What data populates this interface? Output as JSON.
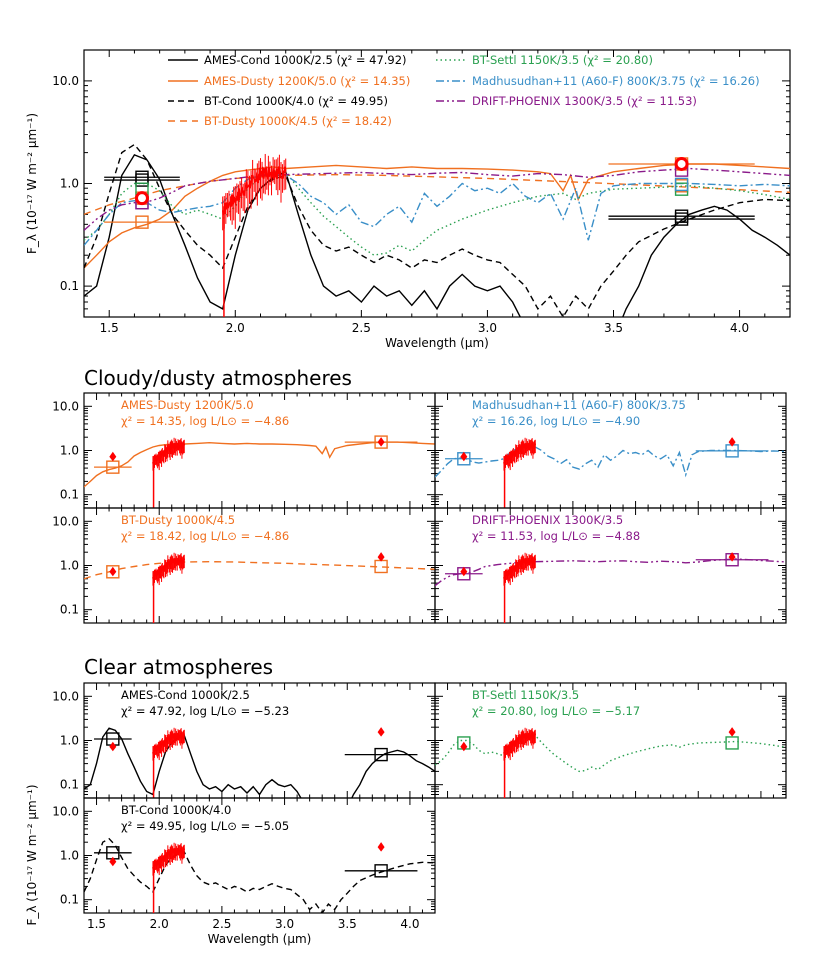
{
  "colors": {
    "ames_cond": "#000000",
    "ames_dusty": "#f07020",
    "bt_cond": "#000000",
    "bt_dusty": "#f07020",
    "bt_settl": "#2aa050",
    "madhusudhan": "#3a8fc8",
    "drift": "#8a1a8a",
    "data": "#ff0000"
  },
  "sections": {
    "cloudy": "Cloudy/dusty atmospheres",
    "clear": "Clear atmospheres"
  },
  "chart_data": {
    "type": "line",
    "xlabel": "Wavelength (μm)",
    "ylabel": "F_λ (10⁻¹⁷ W m⁻² μm⁻¹)",
    "xlim": [
      1.4,
      4.2
    ],
    "ylim": [
      0.05,
      20
    ],
    "y_scale": "log",
    "x_ticks": [
      "1.5",
      "2.0",
      "2.5",
      "3.0",
      "3.5",
      "4.0"
    ],
    "y_ticks": [
      "0.1",
      "1.0",
      "10.0"
    ],
    "legend": [
      {
        "label": "AMES-Cond 1000K/2.5 (χ² = 47.92)",
        "model": "ames_cond"
      },
      {
        "label": "AMES-Dusty 1200K/5.0 (χ² = 14.35)",
        "model": "ames_dusty"
      },
      {
        "label": "BT-Cond 1000K/4.0 (χ² = 49.95)",
        "model": "bt_cond"
      },
      {
        "label": "BT-Dusty 1000K/4.5 (χ² = 18.42)",
        "model": "bt_dusty"
      },
      {
        "label": "BT-Settl 1150K/3.5 (χ² = 20.80)",
        "model": "bt_settl"
      },
      {
        "label": "Madhusudhan+11 (A60-F) 800K/3.75 (χ² = 16.26)",
        "model": "madhusudhan"
      },
      {
        "label": "DRIFT-PHOENIX 1300K/3.5 (χ² = 11.53)",
        "model": "drift"
      }
    ],
    "photometry": [
      {
        "x": 1.63,
        "y": 0.72,
        "xerr": 0.15
      },
      {
        "x": 3.77,
        "y": 1.55,
        "xerr": 0.29
      }
    ],
    "spectrum": {
      "x1": 1.95,
      "x2": 2.2,
      "y_start": 0.55,
      "y_end": 1.3
    },
    "models": {
      "ames_cond": {
        "name": "AMES-Cond 1000K/2.5",
        "dash": "",
        "x": [
          1.4,
          1.45,
          1.5,
          1.55,
          1.6,
          1.65,
          1.7,
          1.75,
          1.8,
          1.85,
          1.9,
          1.95,
          2.0,
          2.05,
          2.1,
          2.15,
          2.2,
          2.25,
          2.3,
          2.35,
          2.4,
          2.45,
          2.5,
          2.55,
          2.6,
          2.65,
          2.7,
          2.75,
          2.8,
          2.85,
          2.9,
          2.95,
          3.0,
          3.05,
          3.1,
          3.15,
          3.2,
          3.25,
          3.3,
          3.35,
          3.4,
          3.45,
          3.5,
          3.55,
          3.6,
          3.65,
          3.7,
          3.75,
          3.8,
          3.85,
          3.9,
          3.95,
          4.0,
          4.05,
          4.1,
          4.15,
          4.2
        ],
        "y": [
          0.08,
          0.1,
          0.3,
          1.2,
          1.9,
          1.7,
          1.1,
          0.5,
          0.25,
          0.12,
          0.07,
          0.06,
          0.2,
          0.55,
          0.9,
          1.15,
          1.3,
          0.5,
          0.2,
          0.1,
          0.08,
          0.09,
          0.07,
          0.1,
          0.08,
          0.09,
          0.065,
          0.09,
          0.06,
          0.1,
          0.13,
          0.1,
          0.09,
          0.1,
          0.07,
          0.04,
          0.025,
          0.03,
          0.02,
          0.03,
          0.025,
          0.04,
          0.03,
          0.06,
          0.1,
          0.2,
          0.3,
          0.4,
          0.5,
          0.55,
          0.6,
          0.55,
          0.45,
          0.35,
          0.3,
          0.25,
          0.2
        ],
        "panel_chi": "χ² = 47.92, log L/L⊙ = −5.23",
        "panel_phot": [
          {
            "x": 1.63,
            "y": 1.08,
            "xerr": 0.15
          },
          {
            "x": 3.77,
            "y": 0.48,
            "xerr": 0.29
          }
        ]
      },
      "ames_dusty": {
        "name": "AMES-Dusty 1200K/5.0",
        "dash": "",
        "x": [
          1.4,
          1.45,
          1.5,
          1.55,
          1.6,
          1.65,
          1.7,
          1.75,
          1.8,
          1.85,
          1.9,
          1.95,
          2.0,
          2.05,
          2.1,
          2.15,
          2.2,
          2.3,
          2.4,
          2.5,
          2.6,
          2.7,
          2.8,
          2.9,
          3.0,
          3.1,
          3.2,
          3.25,
          3.3,
          3.33,
          3.36,
          3.4,
          3.45,
          3.5,
          3.6,
          3.7,
          3.8,
          3.9,
          4.0,
          4.1,
          4.2
        ],
        "y": [
          0.15,
          0.2,
          0.27,
          0.33,
          0.37,
          0.4,
          0.45,
          0.55,
          0.75,
          0.9,
          1.05,
          1.2,
          1.3,
          1.35,
          1.4,
          1.45,
          1.4,
          1.45,
          1.5,
          1.45,
          1.4,
          1.45,
          1.4,
          1.4,
          1.38,
          1.35,
          1.3,
          1.25,
          0.85,
          1.2,
          0.7,
          1.1,
          1.2,
          1.3,
          1.4,
          1.5,
          1.55,
          1.55,
          1.5,
          1.45,
          1.4
        ],
        "panel_chi": "χ² = 14.35, log L/L⊙ = −4.86",
        "panel_phot": [
          {
            "x": 1.63,
            "y": 0.42,
            "xerr": 0.15
          },
          {
            "x": 3.77,
            "y": 1.55,
            "xerr": 0.29
          }
        ]
      },
      "bt_cond": {
        "name": "BT-Cond 1000K/4.0",
        "dash": "6,4",
        "x": [
          1.4,
          1.45,
          1.5,
          1.55,
          1.6,
          1.65,
          1.7,
          1.75,
          1.8,
          1.85,
          1.9,
          1.95,
          2.0,
          2.05,
          2.1,
          2.15,
          2.2,
          2.25,
          2.3,
          2.35,
          2.4,
          2.45,
          2.5,
          2.55,
          2.6,
          2.65,
          2.7,
          2.75,
          2.8,
          2.85,
          2.9,
          2.95,
          3.0,
          3.05,
          3.1,
          3.15,
          3.2,
          3.25,
          3.3,
          3.35,
          3.4,
          3.45,
          3.5,
          3.55,
          3.6,
          3.7,
          3.8,
          3.9,
          4.0,
          4.1,
          4.2
        ],
        "y": [
          0.15,
          0.3,
          0.8,
          2.0,
          2.4,
          1.7,
          0.9,
          0.5,
          0.35,
          0.25,
          0.2,
          0.15,
          0.3,
          0.6,
          0.9,
          1.1,
          1.2,
          0.6,
          0.35,
          0.25,
          0.22,
          0.24,
          0.2,
          0.17,
          0.2,
          0.18,
          0.15,
          0.18,
          0.17,
          0.2,
          0.23,
          0.2,
          0.18,
          0.17,
          0.13,
          0.1,
          0.06,
          0.08,
          0.05,
          0.08,
          0.06,
          0.1,
          0.14,
          0.2,
          0.27,
          0.36,
          0.45,
          0.55,
          0.65,
          0.7,
          0.68
        ],
        "panel_chi": "χ² = 49.95, log L/L⊙ = −5.05",
        "panel_phot": [
          {
            "x": 1.63,
            "y": 1.15,
            "xerr": 0.15
          },
          {
            "x": 3.77,
            "y": 0.45,
            "xerr": 0.29
          }
        ]
      },
      "bt_dusty": {
        "name": "BT-Dusty 1000K/4.5",
        "dash": "7,5",
        "x": [
          1.4,
          1.5,
          1.6,
          1.7,
          1.8,
          1.9,
          2.0,
          2.2,
          2.4,
          2.6,
          2.8,
          3.0,
          3.2,
          3.4,
          3.6,
          3.8,
          4.0,
          4.2
        ],
        "y": [
          0.5,
          0.62,
          0.72,
          0.85,
          0.95,
          1.05,
          1.12,
          1.2,
          1.22,
          1.2,
          1.16,
          1.12,
          1.07,
          1.02,
          0.97,
          0.92,
          0.87,
          0.82
        ],
        "panel_chi": "χ² = 18.42, log L/L⊙ = −4.86",
        "panel_phot": [
          {
            "x": 1.63,
            "y": 0.72,
            "xerr": 0.15
          },
          {
            "x": 3.77,
            "y": 0.95,
            "xerr": 0.29
          }
        ]
      },
      "bt_settl": {
        "name": "BT-Settl 1150K/3.5",
        "dash": "1.5,3",
        "x": [
          1.4,
          1.45,
          1.5,
          1.55,
          1.6,
          1.65,
          1.7,
          1.75,
          1.8,
          1.85,
          1.9,
          1.95,
          2.0,
          2.05,
          2.1,
          2.15,
          2.2,
          2.25,
          2.3,
          2.35,
          2.4,
          2.45,
          2.5,
          2.55,
          2.6,
          2.65,
          2.7,
          2.75,
          2.8,
          2.9,
          3.0,
          3.1,
          3.2,
          3.3,
          3.35,
          3.4,
          3.5,
          3.6,
          3.7,
          3.8,
          3.9,
          4.0,
          4.1,
          4.2
        ],
        "y": [
          0.28,
          0.35,
          0.5,
          0.8,
          1.0,
          1.0,
          0.85,
          0.6,
          0.5,
          0.55,
          0.5,
          0.45,
          0.6,
          0.9,
          1.15,
          1.3,
          1.3,
          0.9,
          0.65,
          0.48,
          0.38,
          0.3,
          0.24,
          0.2,
          0.21,
          0.25,
          0.22,
          0.28,
          0.35,
          0.45,
          0.55,
          0.65,
          0.75,
          0.8,
          0.7,
          0.8,
          0.88,
          0.9,
          0.92,
          0.95,
          0.9,
          0.85,
          0.78,
          0.7
        ],
        "panel_chi": "χ² = 20.80, log L/L⊙ = −5.17",
        "panel_phot": [
          {
            "x": 1.63,
            "y": 0.88,
            "xerr": 0.15
          },
          {
            "x": 3.77,
            "y": 0.88,
            "xerr": 0.29
          }
        ]
      },
      "madhusudhan": {
        "name": "Madhusudhan+11 (A60-F) 800K/3.75",
        "dash": "8,3,2,3",
        "x": [
          1.4,
          1.45,
          1.5,
          1.55,
          1.6,
          1.65,
          1.7,
          1.75,
          1.8,
          1.85,
          1.9,
          1.95,
          2.0,
          2.05,
          2.1,
          2.15,
          2.2,
          2.25,
          2.3,
          2.35,
          2.4,
          2.45,
          2.5,
          2.55,
          2.6,
          2.65,
          2.7,
          2.75,
          2.8,
          2.85,
          2.9,
          2.95,
          3.0,
          3.05,
          3.1,
          3.15,
          3.2,
          3.25,
          3.3,
          3.35,
          3.4,
          3.45,
          3.5,
          3.6,
          3.7,
          3.8,
          3.9,
          4.0,
          4.1,
          4.2
        ],
        "y": [
          0.25,
          0.35,
          0.5,
          0.65,
          0.68,
          0.65,
          0.55,
          0.52,
          0.55,
          0.58,
          0.6,
          0.65,
          0.9,
          1.1,
          1.2,
          1.25,
          1.2,
          1.0,
          0.75,
          0.65,
          0.5,
          0.62,
          0.42,
          0.38,
          0.5,
          0.6,
          0.42,
          0.8,
          0.6,
          0.75,
          1.0,
          0.85,
          0.9,
          0.8,
          1.0,
          0.75,
          0.65,
          0.8,
          0.45,
          0.9,
          0.28,
          0.8,
          0.95,
          1.0,
          1.0,
          1.0,
          0.98,
          0.95,
          0.98,
          0.95
        ],
        "panel_chi": "χ² = 16.26, log L/L⊙ = −4.90",
        "panel_phot": [
          {
            "x": 1.63,
            "y": 0.65,
            "xerr": 0.15
          },
          {
            "x": 3.77,
            "y": 0.98,
            "xerr": 0.29
          }
        ]
      },
      "drift": {
        "name": "DRIFT-PHOENIX 1300K/3.5",
        "dash": "8,3,2,3,2,3",
        "x": [
          1.4,
          1.45,
          1.5,
          1.55,
          1.6,
          1.65,
          1.7,
          1.75,
          1.8,
          1.9,
          2.0,
          2.1,
          2.2,
          2.3,
          2.4,
          2.5,
          2.6,
          2.7,
          2.8,
          2.9,
          3.0,
          3.1,
          3.2,
          3.3,
          3.4,
          3.5,
          3.6,
          3.7,
          3.8,
          3.9,
          4.0,
          4.1,
          4.2
        ],
        "y": [
          0.35,
          0.45,
          0.55,
          0.62,
          0.65,
          0.66,
          0.72,
          0.82,
          0.95,
          1.05,
          1.12,
          1.2,
          1.22,
          1.24,
          1.26,
          1.28,
          1.25,
          1.22,
          1.26,
          1.28,
          1.22,
          1.18,
          1.25,
          1.22,
          1.15,
          1.2,
          1.3,
          1.35,
          1.4,
          1.35,
          1.3,
          1.25,
          1.2
        ],
        "panel_chi": "χ² = 11.53, log L/L⊙ = −4.88",
        "panel_phot": [
          {
            "x": 1.63,
            "y": 0.65,
            "xerr": 0.15
          },
          {
            "x": 3.77,
            "y": 1.35,
            "xerr": 0.29
          }
        ]
      }
    },
    "panels": [
      {
        "model": "ames_dusty",
        "group": "cloudy",
        "slot": "left-1"
      },
      {
        "model": "madhusudhan",
        "group": "cloudy",
        "slot": "right-1"
      },
      {
        "model": "bt_dusty",
        "group": "cloudy",
        "slot": "left-2"
      },
      {
        "model": "drift",
        "group": "cloudy",
        "slot": "right-2"
      },
      {
        "model": "ames_cond",
        "group": "clear",
        "slot": "left-1"
      },
      {
        "model": "bt_settl",
        "group": "clear",
        "slot": "right-1"
      },
      {
        "model": "bt_cond",
        "group": "clear",
        "slot": "left-2"
      }
    ]
  }
}
